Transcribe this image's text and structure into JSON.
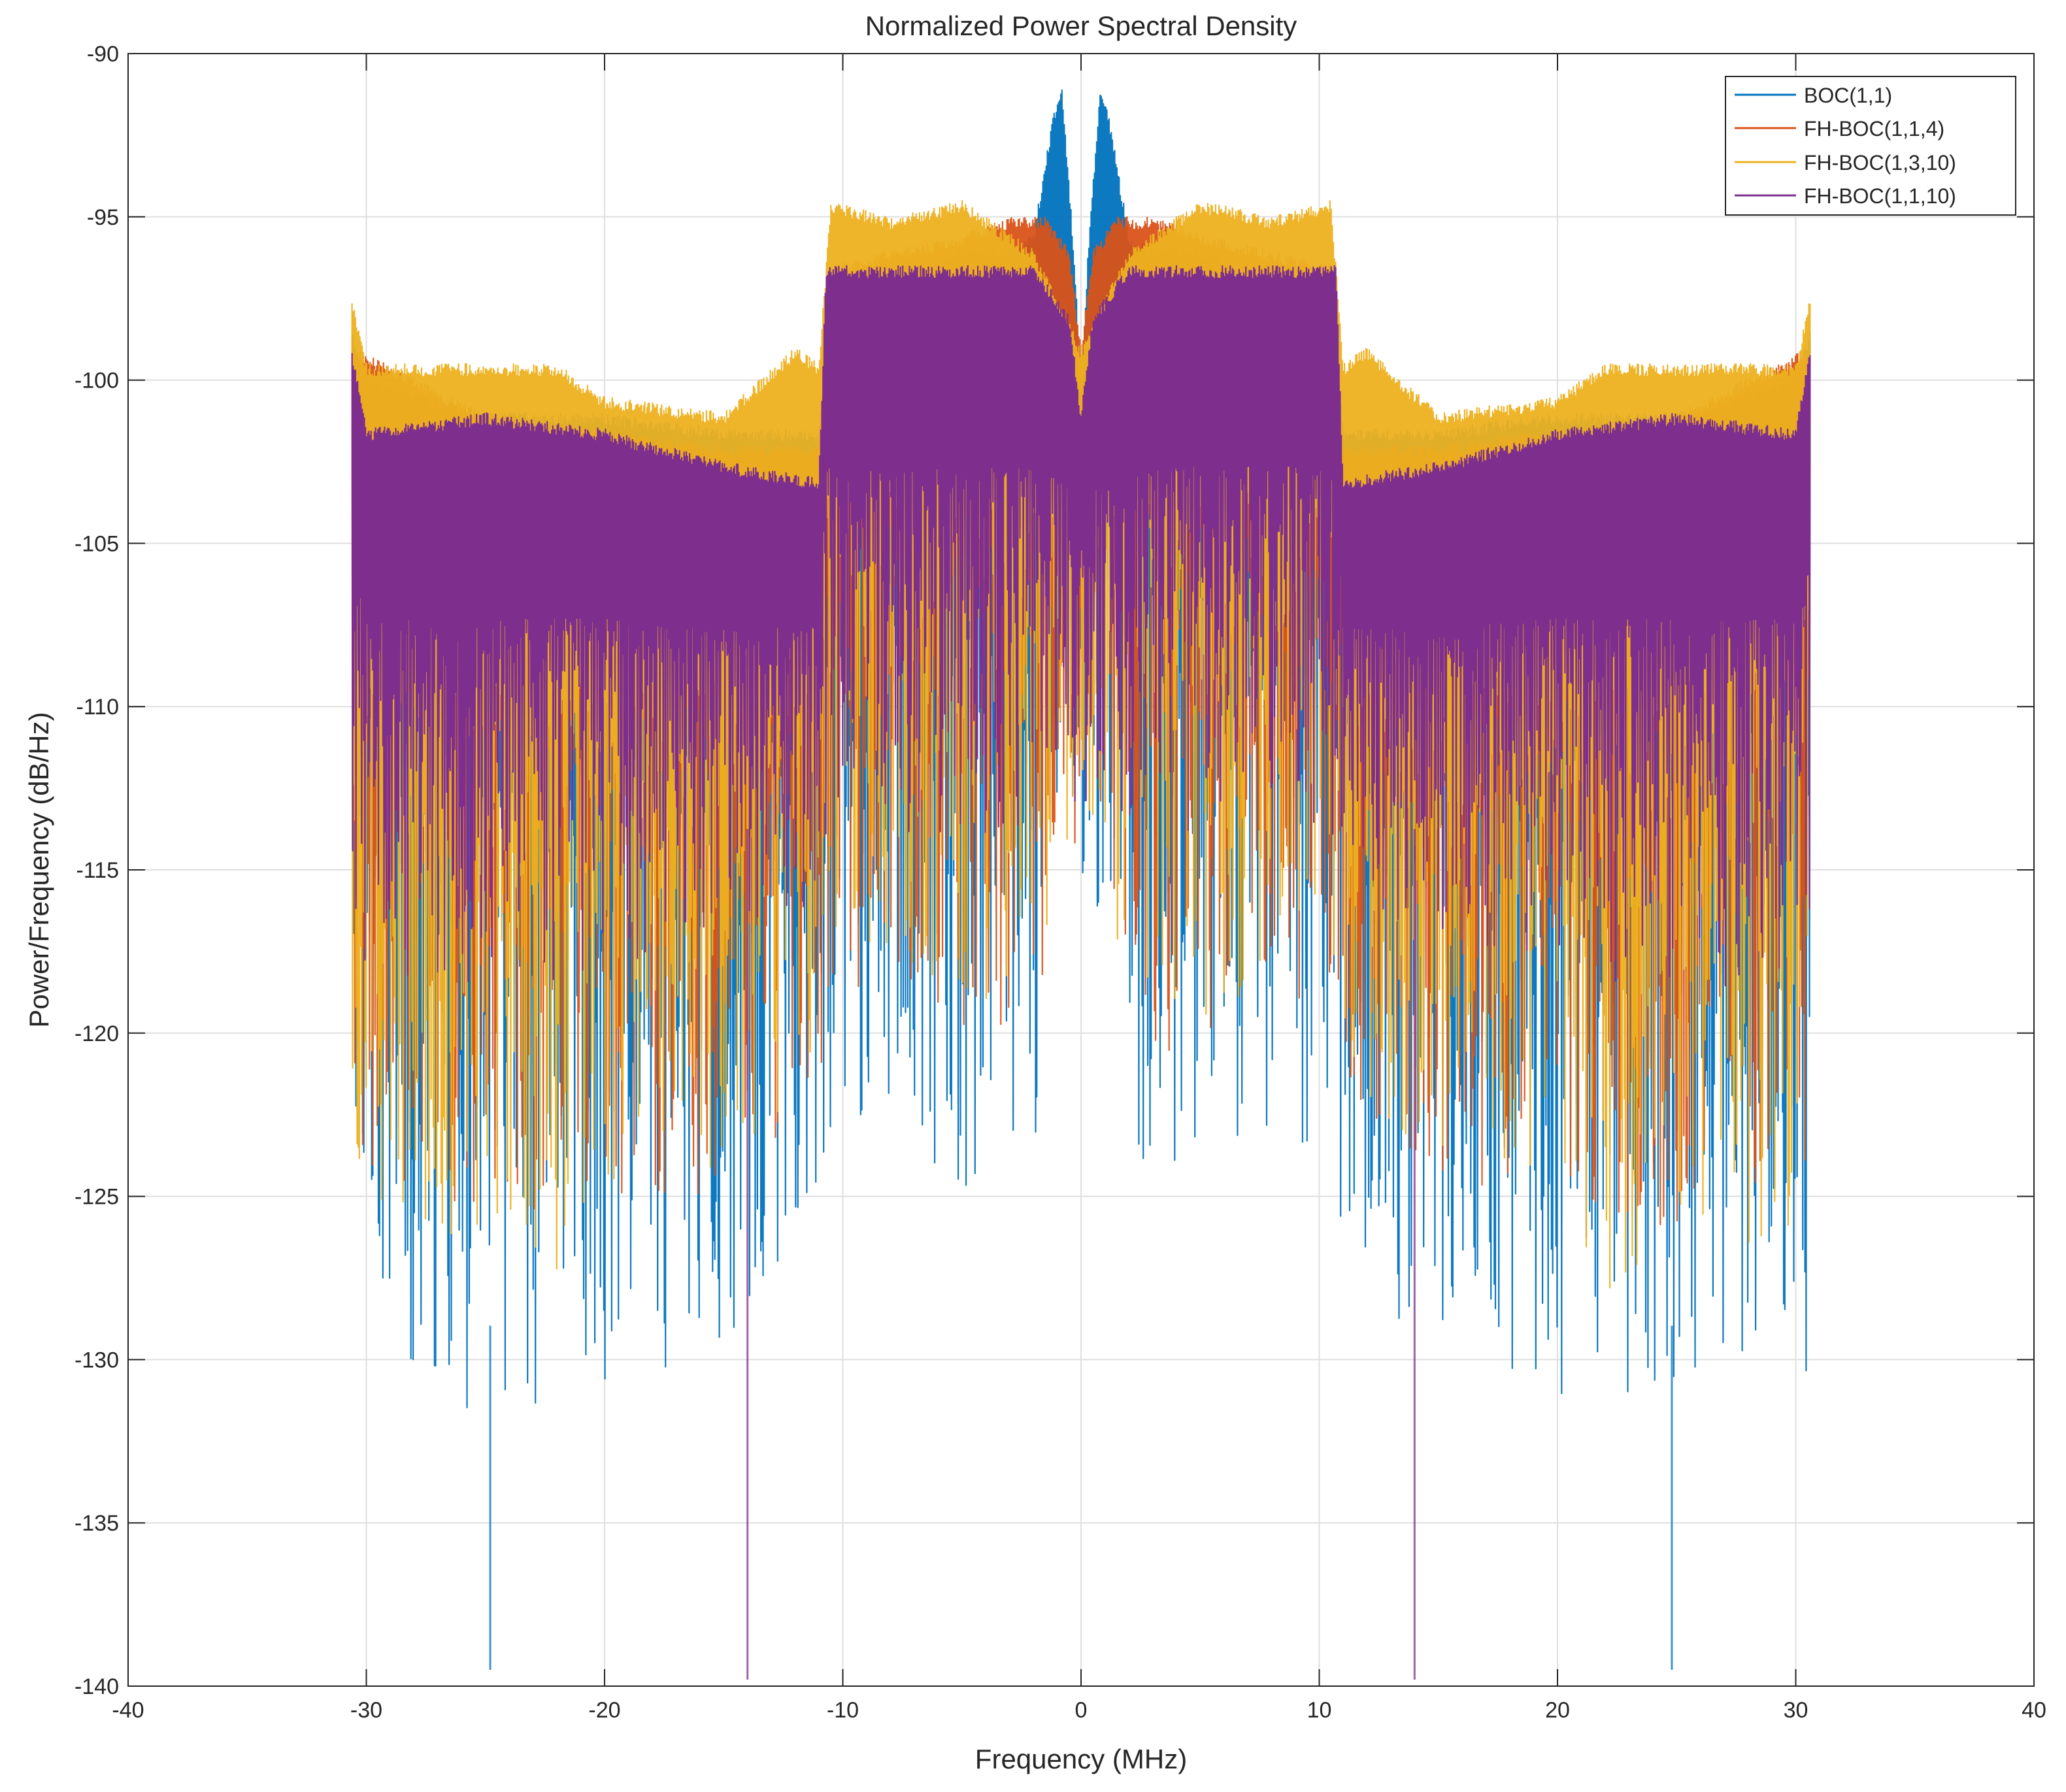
{
  "chart_data": {
    "type": "line",
    "title": "Normalized Power Spectral Density",
    "xlabel": "Frequency (MHz)",
    "ylabel": "Power/Frequency (dB/Hz)",
    "xlim": [
      -40,
      40
    ],
    "ylim": [
      -140,
      -90
    ],
    "xticks": [
      -40,
      -30,
      -20,
      -10,
      0,
      10,
      20,
      30,
      40
    ],
    "yticks": [
      -90,
      -95,
      -100,
      -105,
      -110,
      -115,
      -120,
      -125,
      -130,
      -135,
      -140
    ],
    "grid": true,
    "legend_position": "top-right",
    "colors": {
      "boc11": "#0072BD",
      "fhboc114": "#D95319",
      "fhboc1310": "#EDB120",
      "fhboc1110": "#7E2F8E",
      "axis": "#262626",
      "grid": "#dfdfdf"
    },
    "series": [
      {
        "name": "BOC(1,1)",
        "color": "#0072BD",
        "envelope": {
          "x": [
            -30.6,
            -30,
            -25,
            -20,
            -15,
            -11,
            -10.5,
            -8,
            -5,
            -3,
            -2,
            -1.2,
            -0.8,
            -0.3,
            0,
            0.3,
            0.8,
            1.2,
            2,
            3,
            5,
            8,
            10.5,
            11,
            15,
            20,
            25,
            30,
            30.6
          ],
          "upper": [
            -98.5,
            -100,
            -101,
            -101,
            -101.5,
            -101.5,
            -96.5,
            -97,
            -96,
            -96,
            -95.5,
            -92,
            -91,
            -96,
            -100,
            -96,
            -91,
            -92,
            -95.5,
            -96,
            -96,
            -97,
            -96.5,
            -101.5,
            -101.5,
            -101,
            -101,
            -100,
            -98.5
          ],
          "lower": [
            -131,
            -129,
            -132,
            -131,
            -130,
            -127,
            -124,
            -123,
            -125,
            -126,
            -124,
            -119,
            -116,
            -117,
            -119,
            -117,
            -116,
            -119,
            -124,
            -126,
            -125,
            -123,
            -124,
            -127,
            -130,
            -131,
            -132,
            -129,
            -131
          ]
        },
        "notable_dips": [
          {
            "x": -24.8,
            "y": -139.5
          },
          {
            "x": 24.8,
            "y": -139.5
          }
        ]
      },
      {
        "name": "FH-BOC(1,1,4)",
        "color": "#D95319",
        "envelope": {
          "x": [
            -30.6,
            -25,
            -20,
            -15,
            -11,
            -10.5,
            -5,
            -3,
            -1.5,
            -0.5,
            0,
            0.5,
            1.5,
            3,
            5,
            10.5,
            11,
            15,
            20,
            25,
            30.6
          ],
          "upper": [
            -99,
            -101,
            -101.5,
            -102,
            -102,
            -96.5,
            -95.5,
            -95,
            -95,
            -96,
            -99,
            -96,
            -95,
            -95,
            -95.5,
            -96.5,
            -102,
            -102,
            -101.5,
            -101,
            -99
          ],
          "lower": [
            -124,
            -126,
            -125,
            -125,
            -122,
            -119,
            -120,
            -121,
            -118,
            -113,
            -118,
            -113,
            -118,
            -121,
            -120,
            -119,
            -122,
            -125,
            -125,
            -126,
            -124
          ]
        }
      },
      {
        "name": "FH-BOC(1,3,10)",
        "color": "#EDB120",
        "envelope": {
          "x": [
            -30.6,
            -30,
            -22,
            -20,
            -15,
            -12,
            -11,
            -10.5,
            -8,
            -5,
            -2,
            0,
            2,
            5,
            8,
            10.5,
            11,
            12,
            15,
            20,
            22,
            30,
            30.6
          ],
          "upper": [
            -97.5,
            -99.5,
            -99.5,
            -100.5,
            -101,
            -99,
            -99.5,
            -94.5,
            -95,
            -94.5,
            -96,
            -99,
            -96,
            -94.5,
            -95,
            -94.5,
            -99.5,
            -99,
            -101,
            -100.5,
            -99.5,
            -99.5,
            -97.5
          ],
          "lower": [
            -122,
            -126,
            -128,
            -125,
            -124,
            -122,
            -120,
            -117,
            -118,
            -120,
            -118,
            -115,
            -118,
            -120,
            -118,
            -117,
            -120,
            -122,
            -124,
            -125,
            -128,
            -126,
            -122
          ]
        }
      },
      {
        "name": "FH-BOC(1,1,10)",
        "color": "#7E2F8E",
        "envelope": {
          "x": [
            -30.6,
            -30,
            -25,
            -20,
            -15,
            -11,
            -10.7,
            -5,
            -2,
            -0.5,
            0,
            0.5,
            2,
            5,
            10.7,
            11,
            15,
            20,
            25,
            30,
            30.6
          ],
          "upper": [
            -99,
            -101.5,
            -101,
            -101.5,
            -102.5,
            -103,
            -96.5,
            -96.5,
            -96.5,
            -98,
            -101,
            -98,
            -96.5,
            -96.5,
            -96.5,
            -103,
            -102.5,
            -101.5,
            -101,
            -101.5,
            -99
          ],
          "lower": [
            -118,
            -118,
            -119,
            -118,
            -117,
            -116,
            -114,
            -114,
            -114,
            -113,
            -113,
            -113,
            -114,
            -114,
            -114,
            -116,
            -117,
            -118,
            -119,
            -118,
            -118
          ]
        },
        "notable_dips": [
          {
            "x": -14,
            "y": -139.8
          },
          {
            "x": 14,
            "y": -139.8
          }
        ]
      }
    ]
  }
}
